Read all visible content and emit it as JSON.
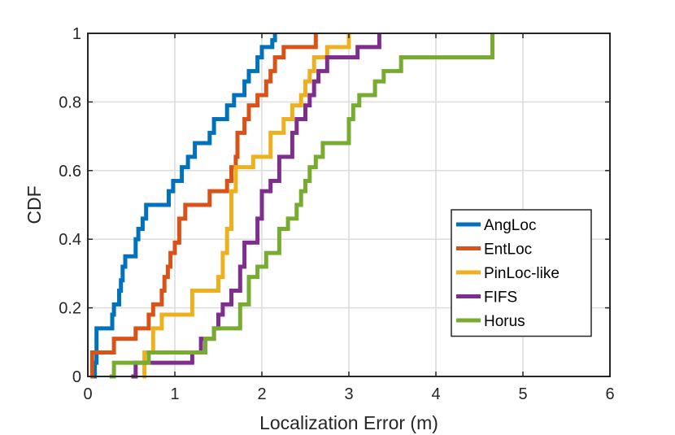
{
  "chart_data": {
    "type": "line",
    "step": true,
    "title": "",
    "xlabel": "Localization Error (m)",
    "ylabel": "CDF",
    "xlim": [
      0,
      6
    ],
    "ylim": [
      0,
      1
    ],
    "xticks": [
      "0",
      "1",
      "2",
      "3",
      "4",
      "5",
      "6"
    ],
    "yticks": [
      "0",
      "0.2",
      "0.4",
      "0.6",
      "0.8",
      "1"
    ],
    "grid": true,
    "legend_position": "lower-right",
    "series": [
      {
        "name": "AngLoc",
        "color": "#0072BD",
        "x": [
          0.05,
          0.08,
          0.1,
          0.28,
          0.3,
          0.36,
          0.38,
          0.4,
          0.43,
          0.55,
          0.58,
          0.63,
          0.67,
          0.93,
          0.98,
          1.08,
          1.15,
          1.23,
          1.4,
          1.45,
          1.5,
          1.53,
          1.56,
          1.6,
          1.68,
          1.72,
          1.8,
          1.85,
          1.9,
          1.95,
          2.0,
          2.05,
          2.12,
          2.15
        ],
        "y": [
          0,
          0.04,
          0.14,
          0.18,
          0.21,
          0.25,
          0.28,
          0.32,
          0.35,
          0.4,
          0.43,
          0.46,
          0.5,
          0.54,
          0.57,
          0.61,
          0.64,
          0.68,
          0.71,
          0.75,
          0.75,
          0.75,
          0.75,
          0.79,
          0.82,
          0.82,
          0.86,
          0.89,
          0.89,
          0.93,
          0.96,
          0.96,
          0.98,
          1.0
        ]
      },
      {
        "name": "EntLoc",
        "color": "#D95319",
        "x": [
          0.03,
          0.05,
          0.15,
          0.3,
          0.55,
          0.7,
          0.75,
          0.85,
          0.88,
          0.92,
          0.95,
          1.0,
          1.05,
          1.12,
          1.4,
          1.6,
          1.65,
          1.7,
          1.72,
          1.8,
          1.85,
          1.95,
          2.0,
          2.05,
          2.1,
          2.15,
          2.2,
          2.25,
          2.62
        ],
        "y": [
          0,
          0.07,
          0.07,
          0.11,
          0.14,
          0.18,
          0.21,
          0.25,
          0.29,
          0.32,
          0.36,
          0.39,
          0.46,
          0.5,
          0.54,
          0.57,
          0.61,
          0.64,
          0.71,
          0.75,
          0.79,
          0.82,
          0.82,
          0.86,
          0.89,
          0.93,
          0.93,
          0.96,
          1.0
        ]
      },
      {
        "name": "PinLoc-like",
        "color": "#EDB120",
        "x": [
          0.63,
          0.65,
          0.75,
          0.85,
          1.2,
          1.5,
          1.55,
          1.6,
          1.65,
          1.7,
          1.8,
          1.9,
          2.05,
          2.1,
          2.25,
          2.35,
          2.45,
          2.5,
          2.55,
          2.6,
          2.65,
          2.75,
          2.8,
          3.0
        ],
        "y": [
          0,
          0.07,
          0.14,
          0.18,
          0.25,
          0.29,
          0.36,
          0.43,
          0.54,
          0.61,
          0.61,
          0.64,
          0.64,
          0.71,
          0.75,
          0.79,
          0.82,
          0.86,
          0.89,
          0.93,
          0.93,
          0.96,
          0.96,
          1.0
        ]
      },
      {
        "name": "FIFS",
        "color": "#7E2F8E",
        "x": [
          0.5,
          0.55,
          1.2,
          1.3,
          1.45,
          1.5,
          1.55,
          1.65,
          1.75,
          1.8,
          1.95,
          2.0,
          2.1,
          2.2,
          2.35,
          2.4,
          2.5,
          2.55,
          2.6,
          2.65,
          2.7,
          2.75,
          3.1,
          3.35
        ],
        "y": [
          0,
          0.04,
          0.07,
          0.11,
          0.14,
          0.18,
          0.21,
          0.25,
          0.32,
          0.39,
          0.46,
          0.54,
          0.57,
          0.64,
          0.71,
          0.75,
          0.79,
          0.82,
          0.86,
          0.89,
          0.89,
          0.93,
          0.96,
          1.0
        ]
      },
      {
        "name": "Horus",
        "color": "#77AC30",
        "x": [
          0.25,
          0.3,
          0.7,
          1.35,
          1.45,
          1.75,
          1.85,
          1.95,
          2.05,
          2.2,
          2.3,
          2.4,
          2.45,
          2.5,
          2.55,
          2.62,
          2.7,
          2.8,
          3.0,
          3.05,
          3.12,
          3.3,
          3.4,
          3.6,
          3.78,
          4.65
        ],
        "y": [
          0,
          0.04,
          0.07,
          0.11,
          0.14,
          0.21,
          0.29,
          0.32,
          0.36,
          0.43,
          0.46,
          0.5,
          0.54,
          0.57,
          0.61,
          0.64,
          0.68,
          0.68,
          0.75,
          0.79,
          0.82,
          0.86,
          0.89,
          0.93,
          0.93,
          1.0
        ]
      }
    ]
  }
}
